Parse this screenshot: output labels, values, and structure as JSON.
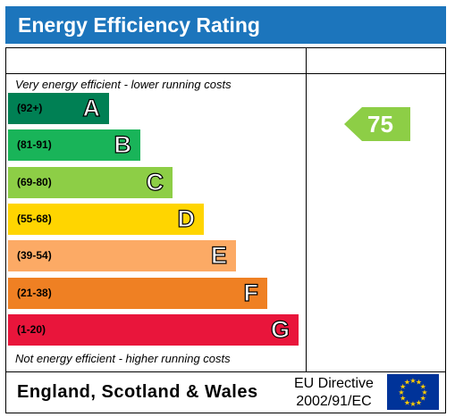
{
  "title": "Energy Efficiency Rating",
  "note_top": "Very energy efficient - lower running costs",
  "note_bottom": "Not energy efficient - higher running costs",
  "bands": [
    {
      "range": "(92+)",
      "letter": "A",
      "color": "#008054",
      "width": 113
    },
    {
      "range": "(81-91)",
      "letter": "B",
      "color": "#19b459",
      "width": 148
    },
    {
      "range": "(69-80)",
      "letter": "C",
      "color": "#8dce46",
      "width": 184
    },
    {
      "range": "(55-68)",
      "letter": "D",
      "color": "#ffd500",
      "width": 219
    },
    {
      "range": "(39-54)",
      "letter": "E",
      "color": "#fcaa65",
      "width": 255
    },
    {
      "range": "(21-38)",
      "letter": "F",
      "color": "#ef8023",
      "width": 290
    },
    {
      "range": "(1-20)",
      "letter": "G",
      "color": "#e9153b",
      "width": 325
    }
  ],
  "current_rating": {
    "value": "75",
    "color": "#8dce46"
  },
  "footer": {
    "region": "England, Scotland & Wales",
    "directive_line1": "EU Directive",
    "directive_line2": "2002/91/EC"
  }
}
